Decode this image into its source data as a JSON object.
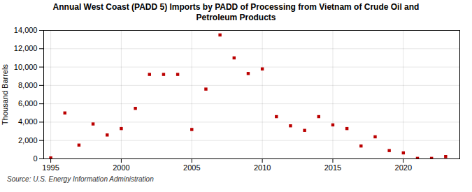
{
  "chart_data": {
    "type": "scatter",
    "title": "Annual West Coast (PADD 5) Imports by PADD of Processing from Vietnam of Crude Oil and\nPetroleum Products",
    "ylabel": "Thousand Barrels",
    "source": "Source: U.S. Energy Information Administration",
    "x": [
      1995,
      1996,
      1997,
      1998,
      1999,
      2000,
      2001,
      2002,
      2003,
      2004,
      2005,
      2006,
      2007,
      2008,
      2009,
      2010,
      2011,
      2012,
      2013,
      2014,
      2015,
      2016,
      2017,
      2018,
      2019,
      2020,
      2021,
      2022,
      2023
    ],
    "values": [
      100,
      5000,
      1500,
      3800,
      2600,
      3300,
      5500,
      9200,
      9200,
      9200,
      3200,
      7600,
      13500,
      11000,
      9300,
      9800,
      4600,
      3600,
      3100,
      4600,
      3700,
      3300,
      1400,
      2400,
      900,
      650,
      50,
      50,
      250
    ],
    "color": "#bb0000",
    "marker": "square",
    "xlim": [
      1994.5,
      2024
    ],
    "ylim": [
      0,
      14000
    ],
    "xticks": [
      1995,
      2000,
      2005,
      2010,
      2015,
      2020
    ],
    "yticks": [
      0,
      {
        "value": 2000,
        "label": "2,000"
      },
      {
        "value": 4000,
        "label": "4,000"
      },
      {
        "value": 6000,
        "label": "6,000"
      },
      {
        "value": 8000,
        "label": "8,000"
      },
      {
        "value": 10000,
        "label": "10,000"
      },
      {
        "value": 12000,
        "label": "12,000"
      },
      {
        "value": 14000,
        "label": "14,000"
      }
    ],
    "grid": true
  }
}
